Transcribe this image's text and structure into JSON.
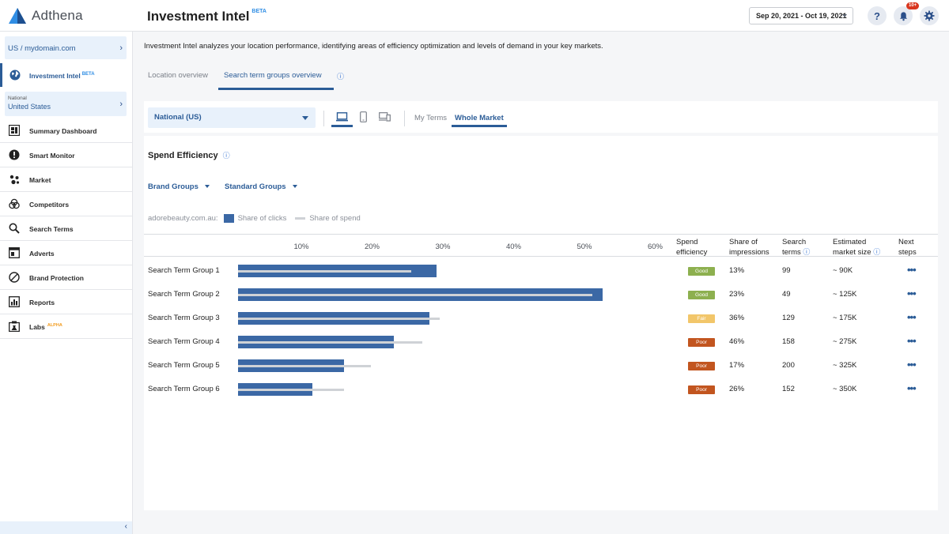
{
  "app": {
    "brand": "Adthena",
    "page_title": "Investment Intel",
    "page_title_tag": "BETA",
    "date_range": "Sep 20, 2021 - Oct 19, 2021",
    "help_label": "?",
    "notifications_count": "10+"
  },
  "sidebar": {
    "domain": "US / mydomain.com",
    "active_item": {
      "label": "Investment Intel",
      "tag": "BETA"
    },
    "region": {
      "caption": "National",
      "value": "United States"
    },
    "items": [
      {
        "label": "Summary Dashboard",
        "icon": "dashboard-icon"
      },
      {
        "label": "Smart Monitor",
        "icon": "alert-icon"
      },
      {
        "label": "Market",
        "icon": "market-icon"
      },
      {
        "label": "Competitors",
        "icon": "competitors-icon"
      },
      {
        "label": "Search Terms",
        "icon": "search-icon"
      },
      {
        "label": "Adverts",
        "icon": "adverts-icon"
      },
      {
        "label": "Brand Protection",
        "icon": "brand-protection-icon"
      },
      {
        "label": "Reports",
        "icon": "reports-icon"
      },
      {
        "label": "Labs",
        "tag": "ALPHA",
        "icon": "labs-icon"
      }
    ],
    "collapse_label": "‹"
  },
  "main": {
    "intro": "Investment Intel analyzes your location performance, identifying areas of efficiency optimization and levels of demand in your key markets.",
    "tabs": [
      {
        "label": "Location overview"
      },
      {
        "label": "Search term groups overview"
      }
    ],
    "info_glyph": "ⓘ"
  },
  "filters": {
    "region_select": "National (US)",
    "devices": [
      "desktop",
      "mobile",
      "tablet"
    ],
    "market_tabs": [
      "My Terms",
      "Whole Market"
    ]
  },
  "section": {
    "title": "Spend Efficiency",
    "dropdowns": [
      "Brand Groups",
      "Standard Groups"
    ],
    "legend": {
      "domain": "adorebeauty.com.au:",
      "clicks": "Share of clicks",
      "spend": "Share of spend"
    }
  },
  "table": {
    "ticks": [
      "10%",
      "20%",
      "30%",
      "40%",
      "50%",
      "60%"
    ],
    "headers": {
      "efficiency": [
        "Spend",
        "efficiency"
      ],
      "impressions": [
        "Share of",
        "impressions"
      ],
      "terms": [
        "Search",
        "terms"
      ],
      "market": [
        "Estimated",
        "market size"
      ],
      "next": [
        "Next",
        "steps"
      ]
    },
    "colors": {
      "good": "#8db04f",
      "fair": "#f2c66a",
      "poor": "#c2551f",
      "clicks": "#3b68a5",
      "spend": "#cfd2d6"
    },
    "more_glyph": "•••"
  },
  "chart_data": {
    "type": "bar",
    "title": "Spend Efficiency",
    "categories": [
      "Search Term Group 1",
      "Search Term Group 2",
      "Search Term Group 3",
      "Search Term Group 4",
      "Search Term Group 5",
      "Search Term Group 6"
    ],
    "xlim": [
      0,
      60
    ],
    "series": [
      {
        "name": "Share of clicks",
        "values": [
          28,
          51.5,
          27,
          22,
          15,
          10.5
        ]
      },
      {
        "name": "Share of spend",
        "values": [
          24.5,
          50,
          28.5,
          26,
          18.8,
          15
        ]
      }
    ],
    "rows": [
      {
        "name": "Search Term Group 1",
        "efficiency": "Good",
        "impressions": "13%",
        "terms": "99",
        "market": "~ 90K"
      },
      {
        "name": "Search Term Group 2",
        "efficiency": "Good",
        "impressions": "23%",
        "terms": "49",
        "market": "~ 125K"
      },
      {
        "name": "Search Term Group 3",
        "efficiency": "Fair",
        "impressions": "36%",
        "terms": "129",
        "market": "~ 175K"
      },
      {
        "name": "Search Term Group 4",
        "efficiency": "Poor",
        "impressions": "46%",
        "terms": "158",
        "market": "~ 275K"
      },
      {
        "name": "Search Term Group 5",
        "efficiency": "Poor",
        "impressions": "17%",
        "terms": "200",
        "market": "~ 325K"
      },
      {
        "name": "Search Term Group 6",
        "efficiency": "Poor",
        "impressions": "26%",
        "terms": "152",
        "market": "~ 350K"
      }
    ]
  }
}
